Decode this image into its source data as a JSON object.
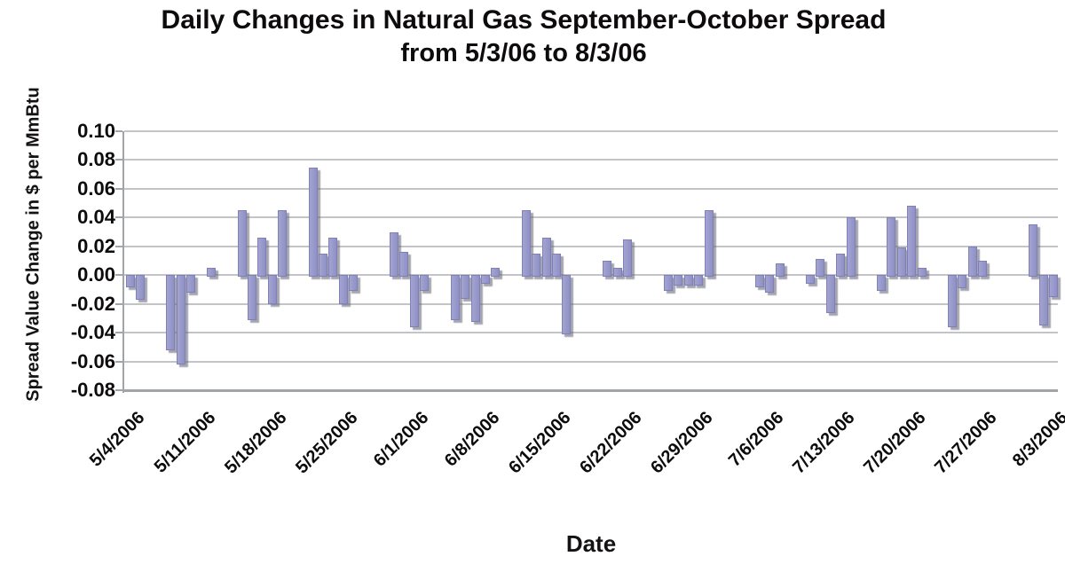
{
  "title": {
    "line1": "Daily Changes in Natural Gas September-October Spread",
    "line2": "from 5/3/06 to 8/3/06"
  },
  "y_axis": {
    "label": "Spread Value Change in $ per MmBtu",
    "tick_labels": [
      "0.10",
      "0.08",
      "0.06",
      "0.04",
      "0.02",
      "0.00",
      "-0.02",
      "-0.04",
      "-0.06",
      "-0.08"
    ]
  },
  "x_axis": {
    "label": "Date",
    "tick_labels": [
      "5/4/2006",
      "5/11/2006",
      "5/18/2006",
      "5/25/2006",
      "6/1/2006",
      "6/8/2006",
      "6/15/2006",
      "6/22/2006",
      "6/29/2006",
      "7/6/2006",
      "7/13/2006",
      "7/20/2006",
      "7/27/2006",
      "8/3/2006"
    ],
    "label_every_days": 7
  },
  "chart_data": {
    "type": "bar",
    "title": "Daily Changes in Natural Gas September-October Spread from 5/3/06 to 8/3/06",
    "xlabel": "Date",
    "ylabel": "Spread Value Change in $ per MmBtu",
    "ylim": [
      -0.08,
      0.1
    ],
    "ytick_step": 0.02,
    "grid": true,
    "legend": false,
    "bar_color": "#9595c9",
    "note": "calendar-day axis; null = no bar (weekend, holiday or zero change)",
    "x": [
      "5/4/2006",
      "5/5/2006",
      "5/6/2006",
      "5/7/2006",
      "5/8/2006",
      "5/9/2006",
      "5/10/2006",
      "5/11/2006",
      "5/12/2006",
      "5/13/2006",
      "5/14/2006",
      "5/15/2006",
      "5/16/2006",
      "5/17/2006",
      "5/18/2006",
      "5/19/2006",
      "5/20/2006",
      "5/21/2006",
      "5/22/2006",
      "5/23/2006",
      "5/24/2006",
      "5/25/2006",
      "5/26/2006",
      "5/27/2006",
      "5/28/2006",
      "5/29/2006",
      "5/30/2006",
      "5/31/2006",
      "6/1/2006",
      "6/2/2006",
      "6/3/2006",
      "6/4/2006",
      "6/5/2006",
      "6/6/2006",
      "6/7/2006",
      "6/8/2006",
      "6/9/2006",
      "6/10/2006",
      "6/11/2006",
      "6/12/2006",
      "6/13/2006",
      "6/14/2006",
      "6/15/2006",
      "6/16/2006",
      "6/17/2006",
      "6/18/2006",
      "6/19/2006",
      "6/20/2006",
      "6/21/2006",
      "6/22/2006",
      "6/23/2006",
      "6/24/2006",
      "6/25/2006",
      "6/26/2006",
      "6/27/2006",
      "6/28/2006",
      "6/29/2006",
      "6/30/2006",
      "7/1/2006",
      "7/2/2006",
      "7/3/2006",
      "7/4/2006",
      "7/5/2006",
      "7/6/2006",
      "7/7/2006",
      "7/8/2006",
      "7/9/2006",
      "7/10/2006",
      "7/11/2006",
      "7/12/2006",
      "7/13/2006",
      "7/14/2006",
      "7/15/2006",
      "7/16/2006",
      "7/17/2006",
      "7/18/2006",
      "7/19/2006",
      "7/20/2006",
      "7/21/2006",
      "7/22/2006",
      "7/23/2006",
      "7/24/2006",
      "7/25/2006",
      "7/26/2006",
      "7/27/2006",
      "7/28/2006",
      "7/29/2006",
      "7/30/2006",
      "7/31/2006",
      "8/1/2006",
      "8/2/2006",
      "8/3/2006"
    ],
    "values": [
      -0.007,
      -0.016,
      null,
      null,
      -0.051,
      -0.061,
      -0.011,
      null,
      0.005,
      null,
      null,
      0.045,
      -0.03,
      0.026,
      -0.019,
      0.045,
      null,
      null,
      0.075,
      0.015,
      0.026,
      -0.019,
      -0.01,
      null,
      null,
      null,
      0.03,
      0.016,
      -0.035,
      -0.01,
      null,
      null,
      -0.03,
      -0.015,
      -0.031,
      -0.005,
      0.005,
      null,
      null,
      0.045,
      0.015,
      0.026,
      0.015,
      -0.04,
      null,
      null,
      null,
      0.01,
      0.005,
      0.025,
      null,
      null,
      null,
      -0.01,
      -0.006,
      -0.006,
      -0.006,
      0.045,
      null,
      null,
      null,
      null,
      -0.007,
      -0.011,
      0.008,
      null,
      null,
      -0.005,
      0.011,
      -0.025,
      0.015,
      0.04,
      null,
      null,
      -0.01,
      0.04,
      0.019,
      0.048,
      0.005,
      null,
      null,
      -0.035,
      -0.008,
      0.02,
      0.01,
      null,
      null,
      null,
      null,
      0.035,
      -0.034,
      -0.014
    ]
  }
}
